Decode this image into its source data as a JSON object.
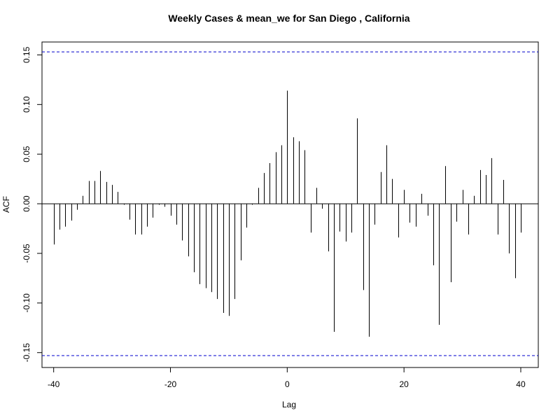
{
  "chart_data": {
    "type": "bar",
    "title": "Weekly Cases & mean_we for San Diego , California",
    "xlabel": "Lag",
    "ylabel": "ACF",
    "xlim": [
      -42,
      43
    ],
    "ylim": [
      -0.165,
      0.163
    ],
    "x_ticks": [
      -40,
      -20,
      0,
      20,
      40
    ],
    "x_tick_labels": [
      "-40",
      "-20",
      "0",
      "20",
      "40"
    ],
    "y_ticks": [
      -0.15,
      -0.1,
      -0.05,
      0.0,
      0.05,
      0.1,
      0.15
    ],
    "y_tick_labels": [
      "-0.15",
      "-0.10",
      "-0.05",
      "0.00",
      "0.05",
      "0.10",
      "0.15"
    ],
    "confidence_bound": 0.153,
    "confidence_color": "#0000cc",
    "grid": false,
    "lags": [
      -40,
      -39,
      -38,
      -37,
      -36,
      -35,
      -34,
      -33,
      -32,
      -31,
      -30,
      -29,
      -28,
      -27,
      -26,
      -25,
      -24,
      -23,
      -22,
      -21,
      -20,
      -19,
      -18,
      -17,
      -16,
      -15,
      -14,
      -13,
      -12,
      -11,
      -10,
      -9,
      -8,
      -7,
      -6,
      -5,
      -4,
      -3,
      -2,
      -1,
      0,
      1,
      2,
      3,
      4,
      5,
      6,
      7,
      8,
      9,
      10,
      11,
      12,
      13,
      14,
      15,
      16,
      17,
      18,
      19,
      20,
      21,
      22,
      23,
      24,
      25,
      26,
      27,
      28,
      29,
      30,
      31,
      32,
      33,
      34,
      35,
      36,
      37,
      38,
      39,
      40
    ],
    "values": [
      -0.041,
      -0.026,
      -0.023,
      -0.017,
      -0.006,
      0.008,
      0.023,
      0.023,
      0.033,
      0.022,
      0.019,
      0.012,
      -0.001,
      -0.016,
      -0.031,
      -0.031,
      -0.023,
      -0.014,
      -0.001,
      -0.003,
      -0.012,
      -0.021,
      -0.037,
      -0.053,
      -0.069,
      -0.081,
      -0.085,
      -0.089,
      -0.096,
      -0.11,
      -0.113,
      -0.096,
      -0.057,
      -0.024,
      -0.001,
      0.016,
      0.031,
      0.041,
      0.052,
      0.059,
      0.114,
      0.067,
      0.063,
      0.054,
      -0.029,
      0.016,
      -0.005,
      -0.048,
      -0.129,
      -0.028,
      -0.038,
      -0.029,
      0.086,
      -0.087,
      -0.134,
      -0.021,
      0.032,
      0.059,
      0.025,
      -0.034,
      0.014,
      -0.019,
      -0.023,
      0.01,
      -0.012,
      -0.062,
      -0.122,
      0.038,
      -0.079,
      -0.018,
      0.014,
      -0.031,
      0.008,
      0.034,
      0.029,
      0.046,
      -0.031,
      0.024,
      -0.05,
      -0.075,
      -0.029
    ]
  }
}
